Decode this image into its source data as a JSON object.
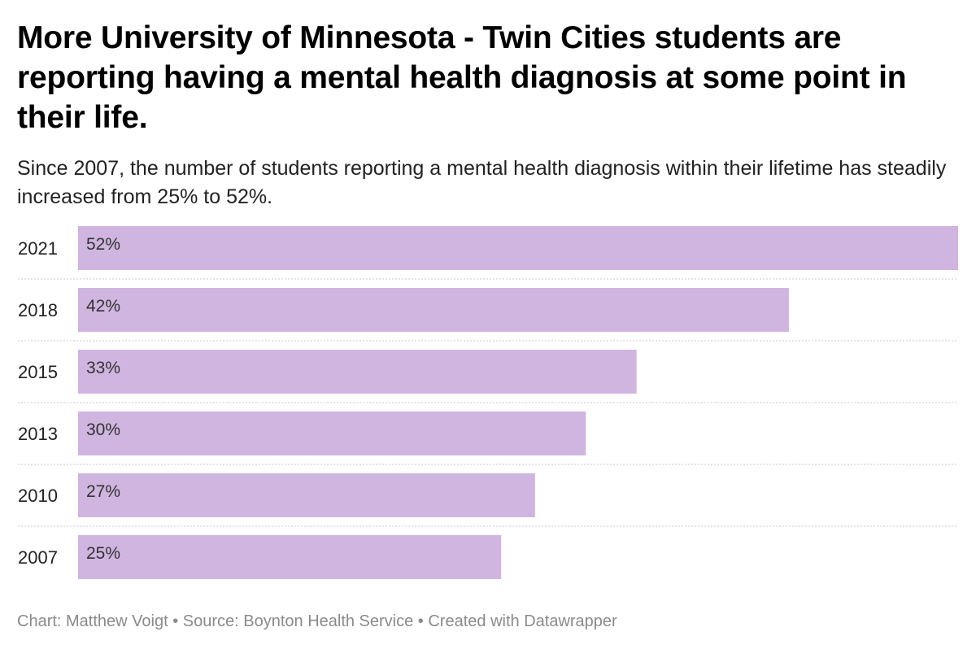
{
  "header": {
    "title": "More University of Minnesota - Twin Cities students are reporting having a mental health diagnosis at some point in their life.",
    "subtitle": "Since 2007, the number of students reporting a mental health diagnosis within their lifetime has steadily increased from 25% to 52%."
  },
  "footer": {
    "credit": "Chart: Matthew Voigt • Source: Boynton Health Service • Created with Datawrapper"
  },
  "colors": {
    "bar": "#cfb5e0",
    "separator": "#c8c8c8",
    "label": "#222222",
    "value_label": "#333333"
  },
  "chart_data": {
    "type": "bar",
    "orientation": "horizontal",
    "title": "More University of Minnesota - Twin Cities students are reporting having a mental health diagnosis at some point in their life.",
    "subtitle": "Since 2007, the number of students reporting a mental health diagnosis within their lifetime has steadily increased from 25% to 52%.",
    "categories": [
      "2021",
      "2018",
      "2015",
      "2013",
      "2010",
      "2007"
    ],
    "values": [
      52,
      42,
      33,
      30,
      27,
      25
    ],
    "value_labels": [
      "52%",
      "42%",
      "33%",
      "30%",
      "27%",
      "25%"
    ],
    "xlim": [
      0,
      52
    ],
    "xlabel": "",
    "ylabel": "",
    "grid": false,
    "legend": "none"
  }
}
